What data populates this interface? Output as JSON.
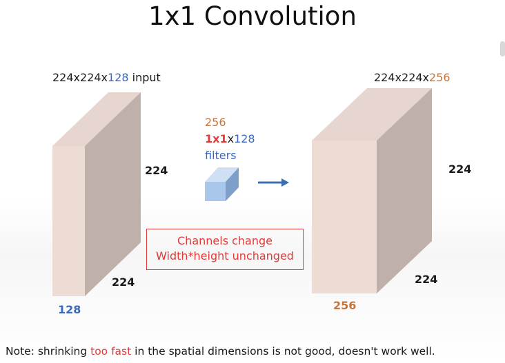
{
  "title": "1x1 Convolution",
  "colors": {
    "text": "#1a1a1a",
    "blue": "#3a66c4",
    "orange": "#c8743a",
    "red": "#e03b3b",
    "volume_front": "#ecdcd4",
    "volume_side": "#bfb0aa",
    "volume_top": "#e6d6cf",
    "filter_front": "#a9c7ea",
    "filter_side": "#7d9fc9",
    "filter_top": "#cfe0f4",
    "arrow": "#3a6fb0"
  },
  "input_volume": {
    "dims_prefix": "224x224x",
    "dims_channels": "128",
    "dims_suffix": " input",
    "height_label": "224",
    "width_label": "224",
    "depth_label": "128"
  },
  "filters": {
    "count": "256",
    "size_red": "1x1",
    "size_x": "x",
    "size_channels": "128",
    "word": "filters"
  },
  "output_volume": {
    "dims_prefix": "224x224x",
    "dims_channels": "256",
    "height_label": "224",
    "width_label": "224",
    "depth_label": "256"
  },
  "callout": {
    "line1": "Channels change",
    "line2": "Width*height unchanged"
  },
  "note": {
    "before": "Note: shrinking ",
    "highlight": "too fast",
    "after": " in the spatial dimensions is not good, doesn't work well."
  }
}
